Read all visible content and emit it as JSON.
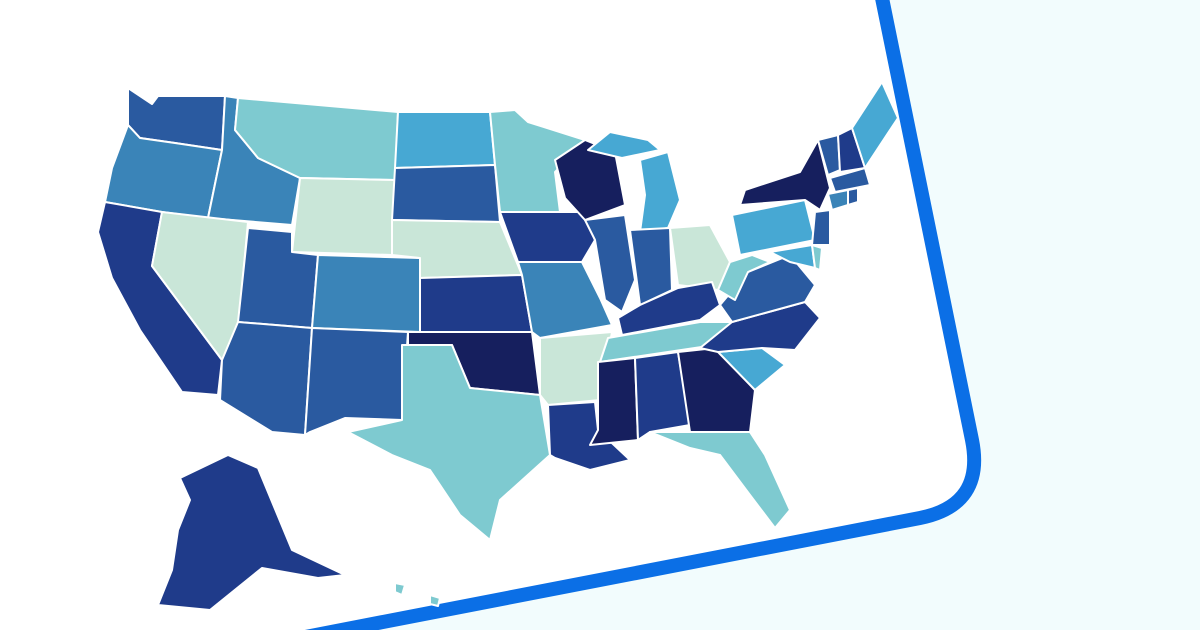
{
  "palette": {
    "background": "#f2fcfd",
    "card": "#ffffff",
    "frame": "#0b6fe6",
    "level_1": "#c9e6d8",
    "level_2": "#7ecad0",
    "level_3": "#47a8d3",
    "level_4": "#3a84b8",
    "level_5": "#2a5aa0",
    "level_6": "#1f3b8a",
    "level_7": "#161f5e"
  },
  "map": {
    "type": "choropleth",
    "region": "United States",
    "legend": "none",
    "states": [
      {
        "code": "WA",
        "level": 5
      },
      {
        "code": "OR",
        "level": 4
      },
      {
        "code": "CA",
        "level": 6
      },
      {
        "code": "ID",
        "level": 4
      },
      {
        "code": "NV",
        "level": 1
      },
      {
        "code": "MT",
        "level": 2
      },
      {
        "code": "WY",
        "level": 1
      },
      {
        "code": "UT",
        "level": 5
      },
      {
        "code": "AZ",
        "level": 5
      },
      {
        "code": "CO",
        "level": 4
      },
      {
        "code": "NM",
        "level": 5
      },
      {
        "code": "ND",
        "level": 3
      },
      {
        "code": "SD",
        "level": 5
      },
      {
        "code": "NE",
        "level": 1
      },
      {
        "code": "KS",
        "level": 6
      },
      {
        "code": "OK",
        "level": 7
      },
      {
        "code": "TX",
        "level": 2
      },
      {
        "code": "MN",
        "level": 2
      },
      {
        "code": "IA",
        "level": 6
      },
      {
        "code": "MO",
        "level": 4
      },
      {
        "code": "AR",
        "level": 1
      },
      {
        "code": "LA",
        "level": 6
      },
      {
        "code": "WI",
        "level": 7
      },
      {
        "code": "IL",
        "level": 5
      },
      {
        "code": "MI",
        "level": 3
      },
      {
        "code": "IN",
        "level": 5
      },
      {
        "code": "OH",
        "level": 1
      },
      {
        "code": "KY",
        "level": 6
      },
      {
        "code": "TN",
        "level": 2
      },
      {
        "code": "MS",
        "level": 7
      },
      {
        "code": "AL",
        "level": 6
      },
      {
        "code": "GA",
        "level": 7
      },
      {
        "code": "FL",
        "level": 2
      },
      {
        "code": "SC",
        "level": 3
      },
      {
        "code": "NC",
        "level": 6
      },
      {
        "code": "VA",
        "level": 5
      },
      {
        "code": "WV",
        "level": 2
      },
      {
        "code": "PA",
        "level": 3
      },
      {
        "code": "NY",
        "level": 7
      },
      {
        "code": "NJ",
        "level": 5
      },
      {
        "code": "MD",
        "level": 3
      },
      {
        "code": "DE",
        "level": 2
      },
      {
        "code": "VT",
        "level": 5
      },
      {
        "code": "NH",
        "level": 6
      },
      {
        "code": "ME",
        "level": 3
      },
      {
        "code": "MA",
        "level": 5
      },
      {
        "code": "CT",
        "level": 4
      },
      {
        "code": "RI",
        "level": 5
      },
      {
        "code": "AK",
        "level": 6
      },
      {
        "code": "HI",
        "level": 2
      }
    ]
  }
}
